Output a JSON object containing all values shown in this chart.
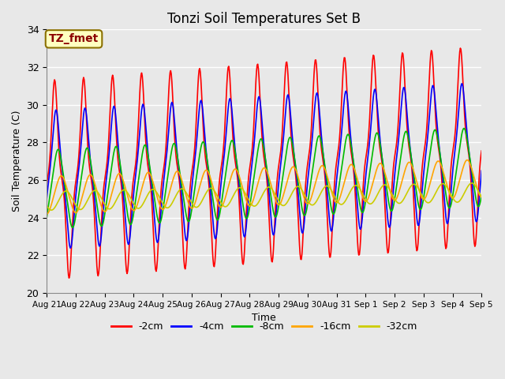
{
  "title": "Tonzi Soil Temperatures Set B",
  "xlabel": "Time",
  "ylabel": "Soil Temperature (C)",
  "annotation_text": "TZ_fmet",
  "annotation_color": "#8B0000",
  "annotation_bg": "#FFFFC0",
  "annotation_border": "#8B7000",
  "ylim": [
    20,
    34
  ],
  "yticks": [
    20,
    22,
    24,
    26,
    28,
    30,
    32,
    34
  ],
  "bg_color": "#E8E8E8",
  "series": [
    {
      "label": "-2cm",
      "color": "#FF0000",
      "amplitude": 5.3,
      "mean": 26.0,
      "phase": 0.15,
      "trend": 0.12,
      "shape_k": 3.0
    },
    {
      "label": "-4cm",
      "color": "#0000FF",
      "amplitude": 3.7,
      "mean": 26.0,
      "phase": 0.45,
      "trend": 0.1,
      "shape_k": 2.0
    },
    {
      "label": "-8cm",
      "color": "#00BB00",
      "amplitude": 2.1,
      "mean": 25.5,
      "phase": 0.9,
      "trend": 0.08,
      "shape_k": 1.2
    },
    {
      "label": "-16cm",
      "color": "#FFA500",
      "amplitude": 1.0,
      "mean": 25.2,
      "phase": 1.6,
      "trend": 0.06,
      "shape_k": 0.8
    },
    {
      "label": "-32cm",
      "color": "#CCCC00",
      "amplitude": 0.5,
      "mean": 24.9,
      "phase": 2.6,
      "trend": 0.03,
      "shape_k": 0.5
    }
  ],
  "xtick_labels": [
    "Aug 21",
    "Aug 22",
    "Aug 23",
    "Aug 24",
    "Aug 25",
    "Aug 26",
    "Aug 27",
    "Aug 28",
    "Aug 29",
    "Aug 30",
    "Aug 31",
    "Sep 1",
    "Sep 2",
    "Sep 3",
    "Sep 4",
    "Sep 5"
  ],
  "n_days": 15,
  "samples_per_day": 48
}
